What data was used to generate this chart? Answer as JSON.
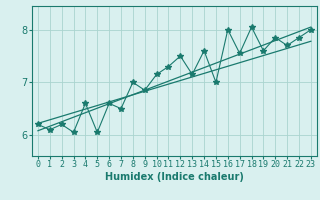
{
  "xlabel": "Humidex (Indice chaleur)",
  "ylabel": "",
  "x_values": [
    0,
    1,
    2,
    3,
    4,
    5,
    6,
    7,
    8,
    9,
    10,
    11,
    12,
    13,
    14,
    15,
    16,
    17,
    18,
    19,
    20,
    21,
    22,
    23
  ],
  "y_values": [
    6.2,
    6.1,
    6.2,
    6.05,
    6.6,
    6.05,
    6.6,
    6.5,
    7.0,
    6.85,
    7.15,
    7.3,
    7.5,
    7.15,
    7.6,
    7.0,
    8.0,
    7.55,
    8.05,
    7.6,
    7.85,
    7.7,
    7.85,
    8.0
  ],
  "line_color": "#1a7a6e",
  "marker": "*",
  "markersize": 4,
  "linewidth": 0.8,
  "bg_color": "#d9f0ef",
  "grid_color": "#aad4cf",
  "axis_color": "#1a7a6e",
  "yticks": [
    6,
    7,
    8
  ],
  "xticks": [
    0,
    1,
    2,
    3,
    4,
    5,
    6,
    7,
    8,
    9,
    10,
    11,
    12,
    13,
    14,
    15,
    16,
    17,
    18,
    19,
    20,
    21,
    22,
    23
  ],
  "ylim": [
    5.6,
    8.45
  ],
  "xlim": [
    -0.5,
    23.5
  ],
  "trend_x": [
    0,
    23
  ],
  "trend_line1_y": [
    6.08,
    8.05
  ],
  "trend_line2_y": [
    6.22,
    7.78
  ],
  "tick_fontsize": 6,
  "xlabel_fontsize": 7
}
